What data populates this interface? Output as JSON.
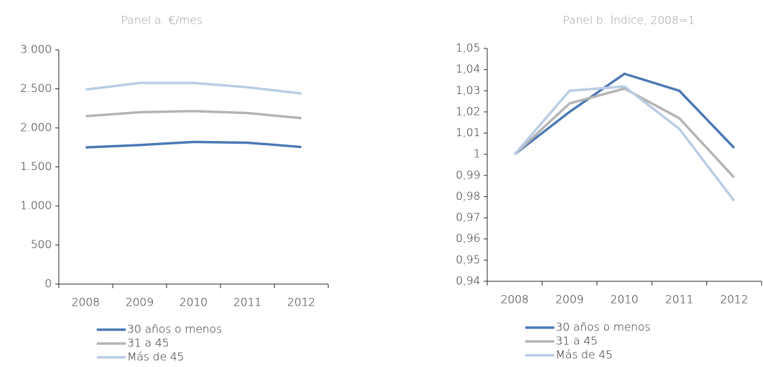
{
  "chart_data": [
    {
      "type": "line",
      "title": "Panel a. €/mes",
      "categories": [
        "2008",
        "2009",
        "2010",
        "2011",
        "2012"
      ],
      "series": [
        {
          "name": "30 años o menos",
          "color": "#4a78b5",
          "values": [
            1750,
            1780,
            1820,
            1810,
            1755
          ]
        },
        {
          "name": "31 a 45",
          "color": "#b3b3b3",
          "values": [
            2150,
            2200,
            2215,
            2190,
            2125
          ]
        },
        {
          "name": "Más de 45",
          "color": "#b8cce4",
          "values": [
            2490,
            2575,
            2575,
            2520,
            2440
          ]
        }
      ],
      "ylim": [
        0,
        3000
      ],
      "yticks": [
        0,
        500,
        {
          "value": 1000,
          "label": "1.000"
        },
        {
          "value": 1500,
          "label": "1.500"
        },
        {
          "value": 2000,
          "label": "2.000"
        },
        {
          "value": 2500,
          "label": "2.500"
        },
        {
          "value": 3000,
          "label": "3.000"
        }
      ],
      "legend": "bottom"
    },
    {
      "type": "line",
      "title": "Panel b. Índice, 2008=1",
      "categories": [
        "2008",
        "2009",
        "2010",
        "2011",
        "2012"
      ],
      "series": [
        {
          "name": "30 años o menos",
          "color": "#4a78b5",
          "values": [
            1,
            1.02,
            1.038,
            1.03,
            1.003
          ]
        },
        {
          "name": "31 a 45",
          "color": "#b3b3b3",
          "values": [
            1,
            1.024,
            1.031,
            1.017,
            0.989
          ]
        },
        {
          "name": "Más de 45",
          "color": "#b8cce4",
          "values": [
            1,
            1.03,
            1.032,
            1.012,
            0.978
          ]
        }
      ],
      "ylim": [
        0.94,
        1.05
      ],
      "yticks": [
        {
          "value": 0.94,
          "label": "0,94"
        },
        {
          "value": 0.95,
          "label": "0,95"
        },
        {
          "value": 0.96,
          "label": "0,96"
        },
        {
          "value": 0.97,
          "label": "0,97"
        },
        {
          "value": 0.98,
          "label": "0,98"
        },
        {
          "value": 0.99,
          "label": "0,99"
        },
        1,
        {
          "value": 1.01,
          "label": "1,01"
        },
        {
          "value": 1.02,
          "label": "1,02"
        },
        {
          "value": 1.03,
          "label": "1,03"
        },
        {
          "value": 1.04,
          "label": "1,04"
        },
        {
          "value": 1.05,
          "label": "1,05"
        }
      ],
      "legend": "bottom"
    }
  ]
}
